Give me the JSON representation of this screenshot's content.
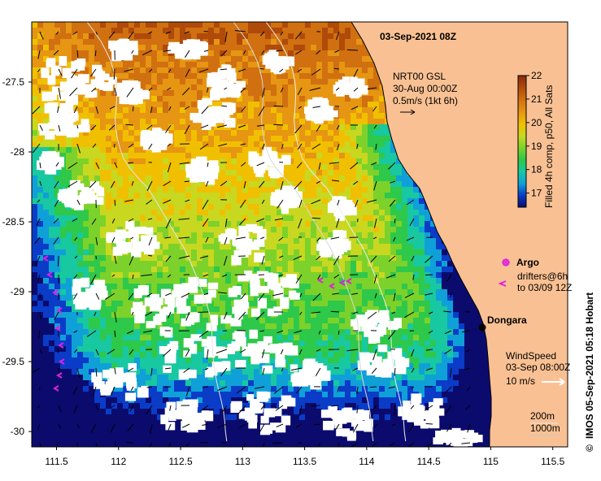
{
  "map": {
    "title": "03-Sep-2021 08Z",
    "lon_ticks": [
      "111.5",
      "112",
      "112.5",
      "113",
      "113.5",
      "114",
      "114.5",
      "115",
      "115.5"
    ],
    "lat_ticks": [
      "-27.5",
      "-28",
      "-28.5",
      "-29",
      "-29.5",
      "-30"
    ],
    "lon_range": [
      111.3,
      115.62
    ],
    "lat_range": [
      -27.07,
      -30.11
    ],
    "current_ref": {
      "line1": "NRT00 GSL",
      "line2": "30-Aug 00:00Z",
      "line3": "0.5m/s (1kt 6h)"
    },
    "colorbar": {
      "ticks": [
        "22",
        "21",
        "20",
        "19",
        "18",
        "17"
      ],
      "label": "Filled 4h comp, p50, All Sats",
      "colors": [
        "#0b0b6e",
        "#0a3cc8",
        "#0fa0d8",
        "#18c8a0",
        "#2ec84a",
        "#7cd22a",
        "#c8d820",
        "#f0c000",
        "#e69612",
        "#d07010",
        "#b04a0a",
        "#8a2a08"
      ]
    },
    "legend_argo": "Argo",
    "legend_drifters_1": "drifters@6h",
    "legend_drifters_2": "to 03/09 12Z",
    "place_label": "Dongara",
    "wind": {
      "line1": "WindSpeed",
      "line2": "03-Sep 08:00Z",
      "line3": "10 m/s"
    },
    "isobaths": {
      "line1": "200m",
      "line2": "1000m"
    },
    "credit": "IMOS 05-Sep-2021 05:18 Hobart",
    "copyright_symbol": "©",
    "colors": {
      "land": "#f9c193",
      "cloud": "#ffffff",
      "argo": "#e020e0",
      "wind_arrow": "#ffffff"
    }
  }
}
